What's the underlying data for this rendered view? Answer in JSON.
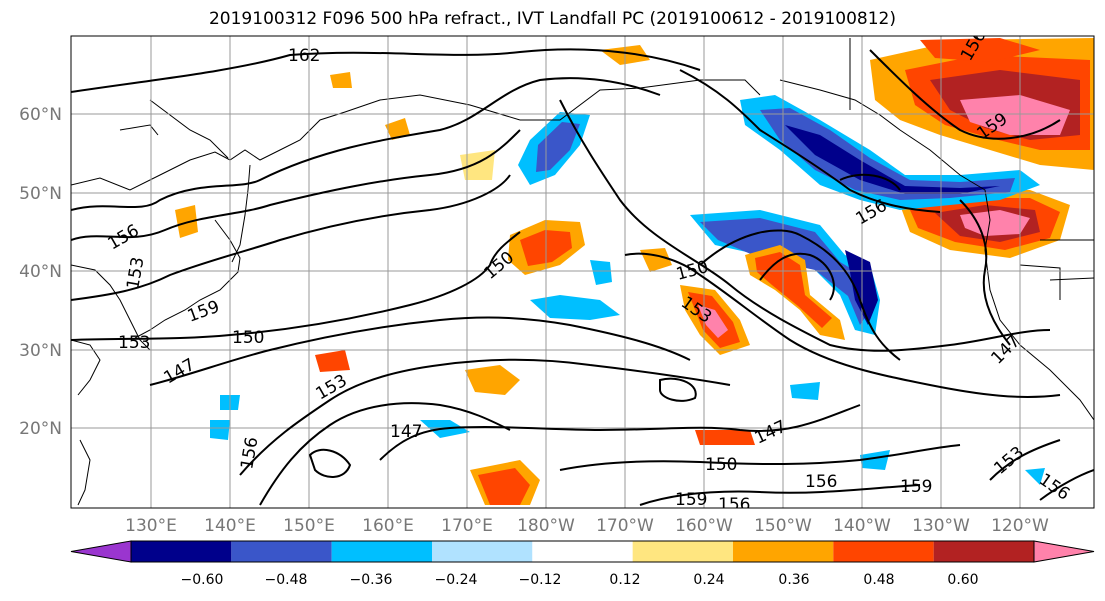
{
  "title": "2019100312 F096 500 hPa refract., IVT Landfall PC (2019100612 - 2019100812)",
  "map": {
    "lat_labels": [
      "60°N",
      "50°N",
      "40°N",
      "30°N",
      "20°N"
    ],
    "lon_labels": [
      "130°E",
      "140°E",
      "150°E",
      "160°E",
      "170°E",
      "180°W",
      "170°W",
      "160°W",
      "150°W",
      "140°W",
      "130°W",
      "120°W"
    ],
    "gridlines": true,
    "contour_labels": [
      "162",
      "156",
      "153",
      "159",
      "150",
      "153",
      "147",
      "150",
      "153",
      "147",
      "150",
      "153",
      "147",
      "150",
      "156",
      "159",
      "156",
      "159",
      "153",
      "156",
      "147",
      "156",
      "159",
      "156",
      "156"
    ]
  },
  "colorbar": {
    "colors": [
      "#9a35cf",
      "#00008b",
      "#3a56c9",
      "#00bfff",
      "#b0e2ff",
      "#ffffff",
      "#ffe680",
      "#ffa500",
      "#ff4500",
      "#b22222",
      "#ff82ab"
    ],
    "tick_labels": [
      "−0.60",
      "−0.48",
      "−0.36",
      "−0.24",
      "−0.12",
      "0.12",
      "0.24",
      "0.36",
      "0.48",
      "0.60"
    ]
  }
}
